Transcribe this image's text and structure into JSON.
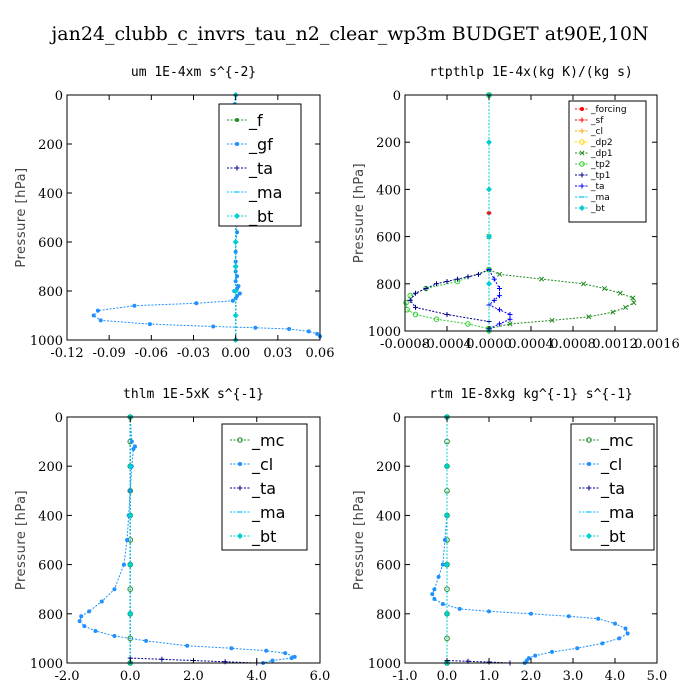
{
  "figure": {
    "title": "jan24_clubb_c_invrs_tau_n2_clear_wp3m  BUDGET at90E,10N"
  },
  "chart_data": [
    {
      "type": "line",
      "title": "um  1E-4xm s^{-2}",
      "ylabel": "Pressure [hPa]",
      "xlim": [
        -0.12,
        0.06
      ],
      "ylim": [
        1000,
        0
      ],
      "xticks": [
        "-0.12",
        "-0.09",
        "-0.06",
        "-0.03",
        "0.00",
        "0.03",
        "0.06"
      ],
      "yticks": [
        "0",
        "200",
        "400",
        "600",
        "800",
        "1000"
      ],
      "legend_position": "top-right",
      "series": [
        {
          "name": "_f",
          "color": "#228B22",
          "marker": "dot",
          "x": [
            0,
            0,
            0,
            0
          ],
          "y": [
            0,
            300,
            700,
            1000
          ]
        },
        {
          "name": "_gf",
          "color": "#1E90FF",
          "marker": "dot",
          "x": [
            0.0,
            -0.001,
            0.002,
            0.006,
            0.012,
            0.005,
            0.004,
            -0.001,
            -0.004,
            0.001,
            -0.003,
            0.002,
            -0.001,
            0.001,
            0.0,
            -0.001,
            0.001,
            0.0,
            0.0,
            -0.002,
            0.0,
            0.0,
            0.001,
            0.0,
            0.0,
            0.0,
            0.0,
            0.0,
            0.001,
            0.0,
            0.002,
            0.001,
            -0.001,
            0.003,
            0.001,
            0.0,
            -0.002,
            -0.028,
            -0.072,
            -0.098,
            -0.101,
            -0.096,
            -0.061,
            -0.016,
            0.014,
            0.038,
            0.052,
            0.058,
            0.06
          ],
          "y": [
            0,
            40,
            80,
            110,
            120,
            130,
            150,
            170,
            180,
            190,
            200,
            210,
            230,
            250,
            270,
            300,
            330,
            360,
            400,
            440,
            480,
            520,
            560,
            600,
            640,
            680,
            700,
            720,
            740,
            760,
            780,
            790,
            800,
            810,
            820,
            830,
            840,
            850,
            860,
            880,
            900,
            920,
            935,
            945,
            950,
            955,
            965,
            975,
            985
          ]
        },
        {
          "name": "_ta",
          "color": "#00008B",
          "marker": "plus",
          "x": [
            0,
            0,
            0
          ],
          "y": [
            0,
            500,
            1000
          ]
        },
        {
          "name": "_ma",
          "color": "#00BFFF",
          "marker": "dash",
          "x": [
            0,
            0,
            0
          ],
          "y": [
            0,
            500,
            1000
          ]
        },
        {
          "name": "_bt",
          "color": "#00CED1",
          "marker": "diamond",
          "x": [
            0,
            0,
            0,
            0,
            0,
            0,
            0,
            0,
            0,
            0,
            0
          ],
          "y": [
            0,
            100,
            200,
            300,
            400,
            500,
            600,
            700,
            800,
            900,
            1000
          ]
        }
      ]
    },
    {
      "type": "line",
      "title": "rtpthlp  1E-4x(kg K)/(kg s)",
      "ylabel": "Pressure [hPa]",
      "xlim": [
        -0.0008,
        0.0016
      ],
      "ylim": [
        1000,
        0
      ],
      "xticks": [
        "-0.0008",
        "-0.0004",
        "0.0000",
        "0.0004",
        "0.0008",
        "0.0012",
        "0.0016"
      ],
      "yticks": [
        "0",
        "200",
        "400",
        "600",
        "800",
        "1000"
      ],
      "legend_position": "top-right",
      "series": [
        {
          "name": "_forcing",
          "color": "#FF0000",
          "marker": "dot",
          "x": [
            0,
            0,
            0
          ],
          "y": [
            0,
            500,
            1000
          ]
        },
        {
          "name": "_sf",
          "color": "#FF0000",
          "marker": "plus",
          "x": [
            0,
            0,
            0
          ],
          "y": [
            0,
            500,
            1000
          ]
        },
        {
          "name": "_cl",
          "color": "#FFA500",
          "marker": "plus",
          "x": [
            0,
            0
          ],
          "y": [
            0,
            1000
          ]
        },
        {
          "name": "_dp2",
          "color": "#FFD700",
          "marker": "circle",
          "x": [
            0,
            0
          ],
          "y": [
            0,
            1000
          ]
        },
        {
          "name": "_dp1",
          "color": "#228B22",
          "marker": "cross",
          "x": [
            0.0,
            0.0,
            0.0,
            0.0001,
            0.0005,
            0.0009,
            0.0011,
            0.00125,
            0.00137,
            0.00138,
            0.0013,
            0.00118,
            0.00095,
            0.0006,
            0.0002,
            0.0
          ],
          "y": [
            0,
            600,
            740,
            760,
            780,
            800,
            820,
            840,
            860,
            880,
            900,
            920,
            940,
            955,
            970,
            990
          ]
        },
        {
          "name": "_tp2",
          "color": "#32CD32",
          "marker": "circle",
          "x": [
            0.0,
            0.0,
            -0.0003,
            -0.0006,
            -0.00075,
            -0.00079,
            -0.00078,
            -0.0007,
            -0.0005,
            -0.0002,
            0.0
          ],
          "y": [
            0,
            740,
            790,
            820,
            850,
            880,
            910,
            930,
            950,
            970,
            990
          ]
        },
        {
          "name": "_tp1",
          "color": "#00008B",
          "marker": "plus",
          "x": [
            0.0,
            0.0,
            -0.0001,
            -0.0002,
            -0.0003,
            -0.0004,
            -0.0005,
            -0.0006,
            -0.0007,
            -0.00075,
            -0.0007,
            -0.0004,
            0.0
          ],
          "y": [
            0,
            740,
            760,
            770,
            780,
            790,
            800,
            820,
            840,
            870,
            900,
            930,
            960
          ]
        },
        {
          "name": "_ta",
          "color": "#0000FF",
          "marker": "plus",
          "x": [
            0.0,
            0.0,
            5e-05,
            0.0001,
            0.0001,
            5e-05,
            0.0,
            0.0001,
            0.0002,
            0.0002,
            0.0001,
            0.0
          ],
          "y": [
            0,
            740,
            780,
            820,
            850,
            870,
            890,
            910,
            930,
            950,
            970,
            990
          ]
        },
        {
          "name": "_ma",
          "color": "#00BFFF",
          "marker": "dash",
          "x": [
            0,
            0
          ],
          "y": [
            0,
            1000
          ]
        },
        {
          "name": "_bt",
          "color": "#00CED1",
          "marker": "diamond",
          "x": [
            0,
            0,
            0,
            0,
            0,
            0
          ],
          "y": [
            0,
            200,
            400,
            600,
            800,
            1000
          ]
        }
      ]
    },
    {
      "type": "line",
      "title": "thlm  1E-5xK s^{-1}",
      "ylabel": "Pressure [hPa]",
      "xlim": [
        -2.0,
        6.0
      ],
      "ylim": [
        1000,
        0
      ],
      "xticks": [
        "-2.0",
        "0.0",
        "2.0",
        "4.0",
        "6.0"
      ],
      "yticks": [
        "0",
        "200",
        "400",
        "600",
        "800",
        "1000"
      ],
      "legend_position": "top-right",
      "series": [
        {
          "name": "_mc",
          "color": "#228B22",
          "marker": "circle",
          "x": [
            0,
            0,
            0,
            0,
            0,
            0,
            0,
            0,
            0,
            0,
            0
          ],
          "y": [
            0,
            100,
            200,
            300,
            400,
            500,
            600,
            700,
            800,
            900,
            1000
          ]
        },
        {
          "name": "_cl",
          "color": "#1E90FF",
          "marker": "dot",
          "x": [
            0.0,
            0.05,
            0.15,
            0.1,
            0.05,
            0.0,
            -0.05,
            -0.1,
            -0.2,
            -0.5,
            -0.9,
            -1.3,
            -1.55,
            -1.6,
            -1.45,
            -1.1,
            -0.5,
            0.5,
            1.8,
            3.2,
            4.3,
            4.9,
            5.2,
            5.1,
            4.5,
            4.2
          ],
          "y": [
            0,
            100,
            120,
            130,
            200,
            300,
            400,
            500,
            600,
            700,
            750,
            790,
            810,
            830,
            850,
            870,
            890,
            910,
            930,
            940,
            950,
            960,
            975,
            980,
            990,
            1000
          ]
        },
        {
          "name": "_ta",
          "color": "#00008B",
          "marker": "plus",
          "x": [
            0,
            0,
            1,
            2,
            3,
            4
          ],
          "y": [
            0,
            980,
            985,
            990,
            995,
            1000
          ]
        },
        {
          "name": "_ma",
          "color": "#00BFFF",
          "marker": "dash",
          "x": [
            0,
            0
          ],
          "y": [
            0,
            1000
          ]
        },
        {
          "name": "_bt",
          "color": "#00CED1",
          "marker": "diamond",
          "x": [
            0,
            0,
            0,
            0,
            0,
            0
          ],
          "y": [
            0,
            200,
            400,
            600,
            800,
            1000
          ]
        }
      ]
    },
    {
      "type": "line",
      "title": "rtm  1E-8xkg kg^{-1} s^{-1}",
      "ylabel": "Pressure [hPa]",
      "xlim": [
        -1.0,
        5.0
      ],
      "ylim": [
        1000,
        0
      ],
      "xticks": [
        "-1.0",
        "0.0",
        "1.0",
        "2.0",
        "3.0",
        "4.0",
        "5.0"
      ],
      "yticks": [
        "0",
        "200",
        "400",
        "600",
        "800",
        "1000"
      ],
      "legend_position": "top-right",
      "series": [
        {
          "name": "_mc",
          "color": "#228B22",
          "marker": "circle",
          "x": [
            0,
            0,
            0,
            0,
            0,
            0,
            0,
            0,
            0,
            0,
            0
          ],
          "y": [
            0,
            100,
            200,
            300,
            400,
            500,
            600,
            700,
            800,
            900,
            1000
          ]
        },
        {
          "name": "_cl",
          "color": "#1E90FF",
          "marker": "dot",
          "x": [
            0.0,
            0.0,
            -0.05,
            -0.1,
            -0.2,
            -0.3,
            -0.35,
            -0.3,
            -0.1,
            0.3,
            1.0,
            2.0,
            2.9,
            3.6,
            4.0,
            4.25,
            4.3,
            4.1,
            3.7,
            3.1,
            2.5,
            2.1,
            1.95,
            1.9,
            1.85
          ],
          "y": [
            0,
            400,
            500,
            600,
            650,
            700,
            720,
            740,
            760,
            780,
            790,
            800,
            810,
            820,
            840,
            860,
            880,
            900,
            920,
            940,
            955,
            970,
            980,
            990,
            1000
          ]
        },
        {
          "name": "_ta",
          "color": "#00008B",
          "marker": "plus",
          "x": [
            0,
            0,
            0.5,
            1.0,
            1.5
          ],
          "y": [
            0,
            990,
            993,
            996,
            1000
          ]
        },
        {
          "name": "_ma",
          "color": "#00BFFF",
          "marker": "dash",
          "x": [
            0,
            0
          ],
          "y": [
            0,
            1000
          ]
        },
        {
          "name": "_bt",
          "color": "#00CED1",
          "marker": "diamond",
          "x": [
            0,
            0,
            0,
            0,
            0,
            0
          ],
          "y": [
            0,
            200,
            400,
            600,
            800,
            1000
          ]
        }
      ]
    }
  ]
}
